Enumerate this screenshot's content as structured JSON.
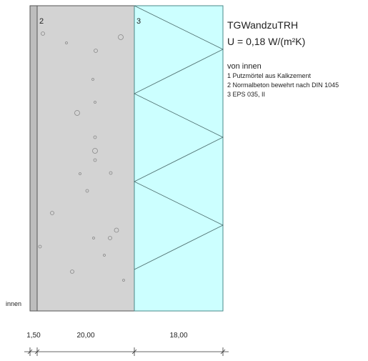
{
  "layer_numbers": [
    "2",
    "3"
  ],
  "info": {
    "title": "TGWandzuTRH",
    "u_value": "U = 0,18 W/(m²K)",
    "direction": "von innen",
    "layers": [
      "1 Putzmörtel aus Kalkzement",
      "2 Normalbeton bewehrt nach DIN 1045",
      "3 EPS 035, II"
    ]
  },
  "side_label": "innen",
  "dimensions": [
    "1,50",
    "20,00",
    "18,00"
  ]
}
